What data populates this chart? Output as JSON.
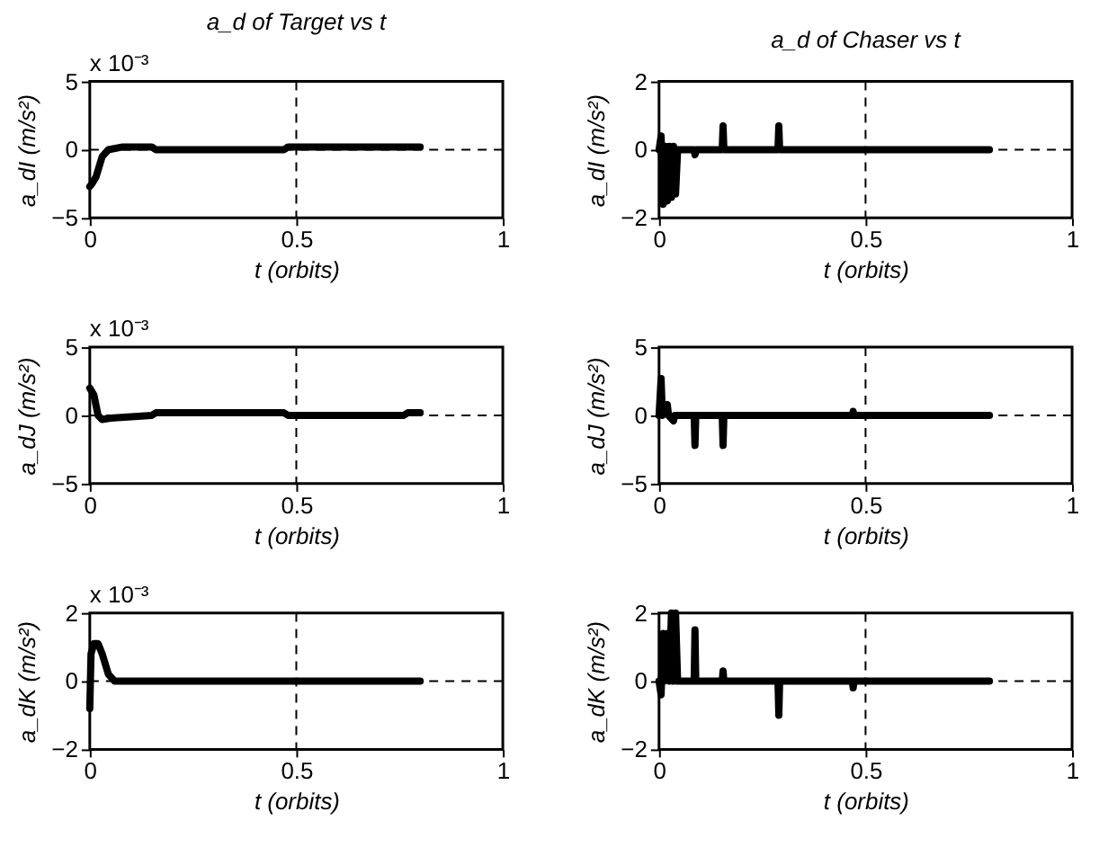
{
  "chart_data": [
    {
      "type": "line",
      "title": "a_d of Target vs t",
      "xlabel": "t (orbits)",
      "ylabel": "a_dI (m/s²)",
      "annotations": [
        "x 10⁻³"
      ],
      "xlim": [
        0,
        1
      ],
      "xticks": [
        0,
        0.5,
        1
      ],
      "ylim": [
        -5,
        5
      ],
      "yticks": [
        -5,
        0,
        5
      ],
      "ref_lines": [
        {
          "axis": "x",
          "value": 0.5,
          "line_style": "dashed"
        },
        {
          "axis": "y",
          "value": 0,
          "line_style": "dashed"
        }
      ],
      "x": [
        0,
        0.005,
        0.015,
        0.03,
        0.045,
        0.08,
        0.15,
        0.16,
        0.47,
        0.48,
        0.8
      ],
      "series": [
        {
          "color": "#000000",
          "values": [
            -2.7,
            -2.5,
            -2,
            -0.5,
            0,
            0.2,
            0.2,
            0,
            0,
            0.2,
            0.2
          ]
        }
      ]
    },
    {
      "type": "line",
      "title": "a_d of Chaser vs t",
      "xlabel": "t (orbits)",
      "ylabel": "a_dI (m/s²)",
      "xlim": [
        0,
        1
      ],
      "xticks": [
        0,
        0.5,
        1
      ],
      "ylim": [
        -2,
        2
      ],
      "yticks": [
        -2,
        0,
        2
      ],
      "ref_lines": [
        {
          "axis": "x",
          "value": 0.5,
          "line_style": "dashed"
        },
        {
          "axis": "y",
          "value": 0,
          "line_style": "dashed"
        }
      ],
      "x": [
        0,
        0.005,
        0.01,
        0.015,
        0.02,
        0.025,
        0.03,
        0.035,
        0.04,
        0.045,
        0.085,
        0.087,
        0.09,
        0.153,
        0.155,
        0.157,
        0.288,
        0.29,
        0.292,
        0.8
      ],
      "series": [
        {
          "color": "#000000",
          "values": [
            0,
            0.4,
            -1.6,
            0.1,
            -1.5,
            0.1,
            -1.4,
            0.1,
            -1.3,
            0,
            0,
            -0.15,
            0,
            0,
            0.7,
            0,
            0,
            0.7,
            0,
            0
          ]
        }
      ]
    },
    {
      "type": "line",
      "xlabel": "t (orbits)",
      "ylabel": "a_dJ (m/s²)",
      "annotations": [
        "x 10⁻³"
      ],
      "xlim": [
        0,
        1
      ],
      "xticks": [
        0,
        0.5,
        1
      ],
      "ylim": [
        -5,
        5
      ],
      "yticks": [
        -5,
        0,
        5
      ],
      "ref_lines": [
        {
          "axis": "x",
          "value": 0.5,
          "line_style": "dashed"
        },
        {
          "axis": "y",
          "value": 0,
          "line_style": "dashed"
        }
      ],
      "x": [
        0,
        0.01,
        0.02,
        0.03,
        0.05,
        0.15,
        0.16,
        0.47,
        0.48,
        0.76,
        0.77,
        0.8
      ],
      "series": [
        {
          "color": "#000000",
          "values": [
            2,
            1.5,
            0,
            -0.3,
            -0.2,
            0,
            0.2,
            0.2,
            0,
            0,
            0.2,
            0.2
          ]
        }
      ]
    },
    {
      "type": "line",
      "xlabel": "t (orbits)",
      "ylabel": "a_dJ (m/s²)",
      "xlim": [
        0,
        1
      ],
      "xticks": [
        0,
        0.5,
        1
      ],
      "ylim": [
        -5,
        5
      ],
      "yticks": [
        -5,
        0,
        5
      ],
      "ref_lines": [
        {
          "axis": "x",
          "value": 0.5,
          "line_style": "dashed"
        },
        {
          "axis": "y",
          "value": 0,
          "line_style": "dashed"
        }
      ],
      "x": [
        0,
        0.005,
        0.008,
        0.02,
        0.023,
        0.035,
        0.038,
        0.085,
        0.087,
        0.089,
        0.153,
        0.155,
        0.157,
        0.468,
        0.47,
        0.472,
        0.8
      ],
      "series": [
        {
          "color": "#000000",
          "values": [
            0,
            2.7,
            0,
            0.8,
            0,
            -0.4,
            0,
            0,
            -2.2,
            0,
            0,
            -2.2,
            0,
            0,
            0.3,
            0,
            0
          ]
        }
      ]
    },
    {
      "type": "line",
      "xlabel": "t (orbits)",
      "ylabel": "a_dK (m/s²)",
      "annotations": [
        "x 10⁻³"
      ],
      "xlim": [
        0,
        1
      ],
      "xticks": [
        0,
        0.5,
        1
      ],
      "ylim": [
        -2,
        2
      ],
      "yticks": [
        -2,
        0,
        2
      ],
      "ref_lines": [
        {
          "axis": "x",
          "value": 0.5,
          "line_style": "dashed"
        },
        {
          "axis": "y",
          "value": 0,
          "line_style": "dashed"
        }
      ],
      "x": [
        0,
        0.003,
        0.01,
        0.02,
        0.03,
        0.045,
        0.06,
        0.8
      ],
      "series": [
        {
          "color": "#000000",
          "values": [
            -0.8,
            0.8,
            1.1,
            1.1,
            0.8,
            0.2,
            0,
            0
          ]
        }
      ]
    },
    {
      "type": "line",
      "xlabel": "t (orbits)",
      "ylabel": "a_dK (m/s²)",
      "xlim": [
        0,
        1
      ],
      "xticks": [
        0,
        0.5,
        1
      ],
      "ylim": [
        -2,
        2
      ],
      "yticks": [
        -2,
        0,
        2
      ],
      "ref_lines": [
        {
          "axis": "x",
          "value": 0.5,
          "line_style": "dashed"
        },
        {
          "axis": "y",
          "value": 0,
          "line_style": "dashed"
        }
      ],
      "x": [
        0,
        0.005,
        0.01,
        0.012,
        0.02,
        0.025,
        0.03,
        0.035,
        0.04,
        0.045,
        0.085,
        0.087,
        0.089,
        0.153,
        0.155,
        0.157,
        0.288,
        0.29,
        0.292,
        0.468,
        0.47,
        0.472,
        0.8
      ],
      "series": [
        {
          "color": "#000000",
          "values": [
            0,
            -0.4,
            1.4,
            0,
            1.4,
            0,
            2,
            0,
            2,
            0,
            0,
            1.5,
            0,
            0,
            0.3,
            0,
            0,
            -1,
            0,
            0,
            -0.2,
            0,
            0
          ]
        }
      ]
    }
  ]
}
